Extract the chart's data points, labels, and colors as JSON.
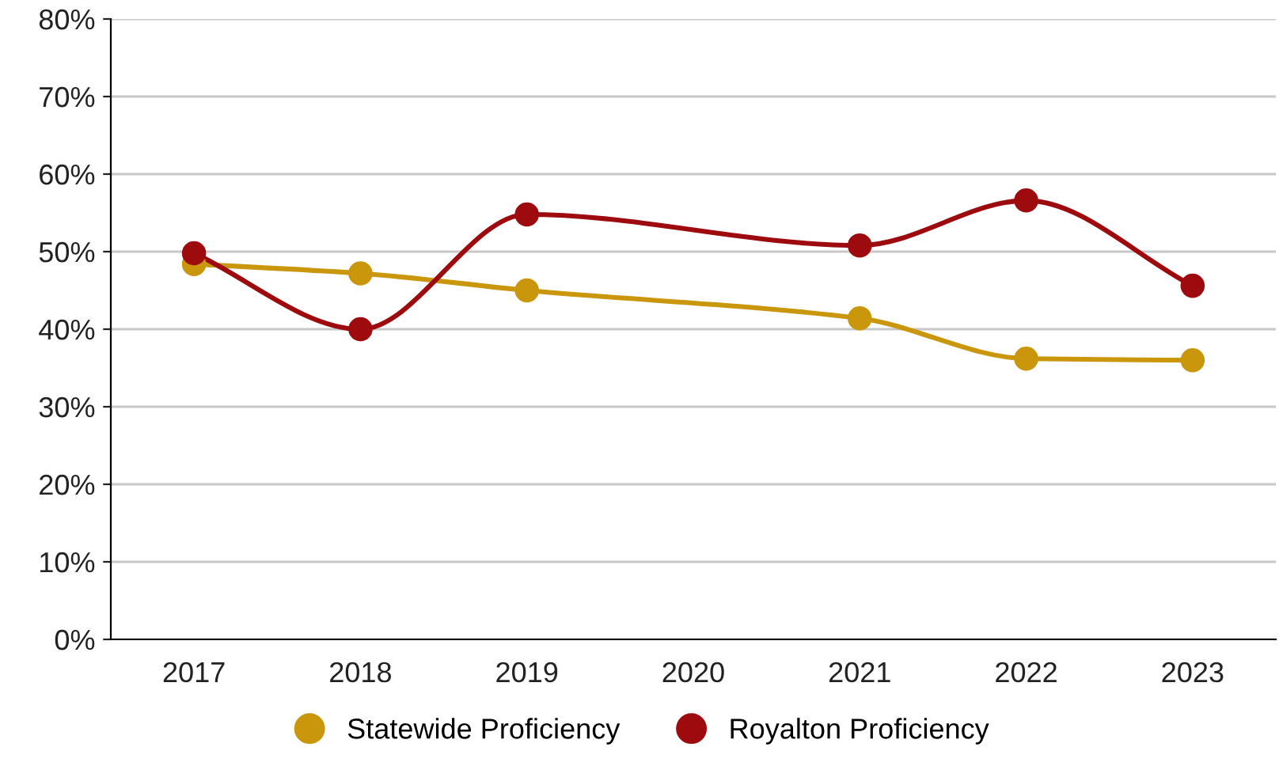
{
  "chart_data": {
    "type": "line",
    "xlim": [
      2016.5,
      2023.5
    ],
    "xticks": [
      2017,
      2018,
      2019,
      2020,
      2021,
      2022,
      2023
    ],
    "ylim": [
      0,
      80
    ],
    "yticks": [
      {
        "value": 0,
        "label": "0%"
      },
      {
        "value": 10,
        "label": "10%"
      },
      {
        "value": 20,
        "label": "20%"
      },
      {
        "value": 30,
        "label": "30%"
      },
      {
        "value": 40,
        "label": "40%"
      },
      {
        "value": 50,
        "label": "50%"
      },
      {
        "value": 60,
        "label": "60%"
      },
      {
        "value": 70,
        "label": "70%"
      },
      {
        "value": 80,
        "label": "80%"
      }
    ],
    "grid": "y",
    "legend": "bottom",
    "marker": "circle",
    "line_style": "solid",
    "series": [
      {
        "name": "Statewide Proficiency",
        "color": "#c9960c",
        "x": [
          2017,
          2018,
          2019,
          2021,
          2022,
          2023
        ],
        "values": [
          48.4,
          47.2,
          45.0,
          41.4,
          36.2,
          36.0
        ]
      },
      {
        "name": "Royalton Proficiency",
        "color": "#9e0b0f",
        "x": [
          2017,
          2018,
          2019,
          2021,
          2022,
          2023
        ],
        "values": [
          49.8,
          40.0,
          54.8,
          50.8,
          56.6,
          45.6
        ]
      }
    ]
  }
}
